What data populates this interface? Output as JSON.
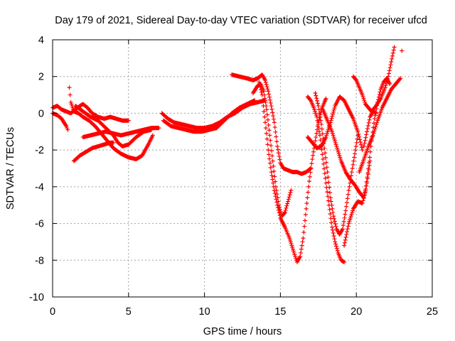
{
  "chart_data": {
    "type": "scatter",
    "title": "Day 179 of 2021, Sidereal Day-to-day VTEC variation (SDTVAR) for receiver ufcd",
    "xlabel": "GPS time / hours",
    "ylabel": "SDTVAR / TECUs",
    "xlim": [
      0,
      25
    ],
    "ylim": [
      -10,
      4
    ],
    "xticks": [
      0,
      5,
      10,
      15,
      20,
      25
    ],
    "yticks": [
      -10,
      -8,
      -6,
      -4,
      -2,
      0,
      2,
      4
    ],
    "grid": true,
    "marker": "+",
    "legend": "none",
    "series": [
      {
        "color": "#ff0000",
        "tracks": [
          [
            [
              0.0,
              0.3
            ],
            [
              0.3,
              0.4
            ],
            [
              0.6,
              0.2
            ],
            [
              0.9,
              0.1
            ],
            [
              1.2,
              0.0
            ],
            [
              1.5,
              0.2
            ],
            [
              1.8,
              0.4
            ],
            [
              2.0,
              0.5
            ],
            [
              2.3,
              0.3
            ],
            [
              2.6,
              0.0
            ],
            [
              3.0,
              -0.2
            ],
            [
              3.4,
              -0.3
            ],
            [
              3.8,
              -0.2
            ],
            [
              4.2,
              -0.3
            ],
            [
              4.6,
              -0.4
            ],
            [
              5.0,
              -0.4
            ]
          ],
          [
            [
              0.0,
              0.0
            ],
            [
              0.3,
              -0.1
            ],
            [
              0.6,
              -0.3
            ],
            [
              0.9,
              -0.7
            ],
            [
              1.0,
              -0.9
            ]
          ],
          [
            [
              1.1,
              1.4
            ],
            [
              1.2,
              0.6
            ],
            [
              1.4,
              0.1
            ],
            [
              1.7,
              0.0
            ],
            [
              2.0,
              -0.2
            ],
            [
              2.4,
              -0.4
            ],
            [
              2.8,
              -0.7
            ],
            [
              3.2,
              -1.1
            ],
            [
              3.6,
              -1.5
            ],
            [
              4.0,
              -1.9
            ],
            [
              4.5,
              -2.2
            ],
            [
              5.0,
              -2.4
            ],
            [
              5.5,
              -2.5
            ],
            [
              5.9,
              -2.3
            ],
            [
              6.3,
              -1.7
            ],
            [
              6.6,
              -1.2
            ]
          ],
          [
            [
              1.4,
              -2.6
            ],
            [
              1.8,
              -2.3
            ],
            [
              2.2,
              -2.1
            ],
            [
              2.6,
              -1.9
            ],
            [
              3.0,
              -1.8
            ],
            [
              3.4,
              -1.7
            ],
            [
              3.8,
              -1.6
            ],
            [
              4.0,
              -1.6
            ]
          ],
          [
            [
              2.0,
              -1.3
            ],
            [
              2.5,
              -1.2
            ],
            [
              3.0,
              -1.1
            ],
            [
              3.5,
              -1.0
            ],
            [
              4.0,
              -1.1
            ],
            [
              4.5,
              -1.2
            ],
            [
              5.0,
              -1.1
            ],
            [
              5.5,
              -1.0
            ],
            [
              6.0,
              -0.9
            ],
            [
              6.5,
              -0.8
            ],
            [
              7.0,
              -0.8
            ]
          ],
          [
            [
              1.5,
              0.4
            ],
            [
              2.0,
              0.1
            ],
            [
              2.5,
              -0.2
            ],
            [
              3.0,
              -0.4
            ],
            [
              3.5,
              -0.8
            ],
            [
              4.0,
              -1.2
            ],
            [
              4.3,
              -1.6
            ],
            [
              4.6,
              -1.8
            ],
            [
              5.0,
              -1.7
            ],
            [
              5.5,
              -1.3
            ],
            [
              6.0,
              -1.0
            ],
            [
              6.5,
              -0.9
            ]
          ],
          [
            [
              7.2,
              0.0
            ],
            [
              7.6,
              -0.3
            ],
            [
              8.0,
              -0.5
            ],
            [
              8.5,
              -0.6
            ],
            [
              9.0,
              -0.7
            ],
            [
              9.5,
              -0.8
            ],
            [
              10.0,
              -0.8
            ],
            [
              10.5,
              -0.7
            ],
            [
              11.0,
              -0.5
            ],
            [
              11.5,
              -0.2
            ],
            [
              12.0,
              0.0
            ],
            [
              12.5,
              0.3
            ],
            [
              13.0,
              0.5
            ],
            [
              13.5,
              0.6
            ],
            [
              14.0,
              0.7
            ]
          ],
          [
            [
              7.3,
              -0.4
            ],
            [
              7.8,
              -0.7
            ],
            [
              8.3,
              -0.8
            ],
            [
              8.8,
              -0.9
            ],
            [
              9.3,
              -1.0
            ],
            [
              9.8,
              -1.0
            ],
            [
              10.3,
              -0.9
            ],
            [
              10.8,
              -0.8
            ],
            [
              11.3,
              -0.4
            ],
            [
              11.8,
              0.0
            ],
            [
              12.3,
              0.3
            ],
            [
              12.8,
              0.5
            ],
            [
              13.3,
              0.7
            ]
          ],
          [
            [
              11.8,
              2.1
            ],
            [
              12.3,
              2.0
            ],
            [
              12.8,
              1.9
            ],
            [
              13.2,
              1.8
            ],
            [
              13.5,
              1.9
            ],
            [
              13.8,
              2.1
            ],
            [
              14.0,
              1.8
            ],
            [
              14.2,
              1.2
            ],
            [
              14.4,
              0.4
            ],
            [
              14.6,
              -0.5
            ],
            [
              14.8,
              -1.8
            ],
            [
              15.0,
              -2.7
            ],
            [
              15.2,
              -3.0
            ],
            [
              15.5,
              -3.1
            ],
            [
              15.8,
              -3.2
            ],
            [
              16.1,
              -3.2
            ],
            [
              16.4,
              -3.3
            ],
            [
              16.7,
              -3.2
            ],
            [
              17.0,
              -3.0
            ]
          ],
          [
            [
              13.2,
              1.1
            ],
            [
              13.5,
              1.5
            ],
            [
              13.7,
              1.6
            ],
            [
              13.9,
              1.2
            ],
            [
              14.1,
              0.2
            ],
            [
              14.3,
              -1.2
            ],
            [
              14.5,
              -2.6
            ],
            [
              14.7,
              -4.0
            ],
            [
              14.9,
              -5.0
            ],
            [
              15.1,
              -5.6
            ],
            [
              15.3,
              -5.4
            ],
            [
              15.5,
              -4.8
            ],
            [
              15.7,
              -4.2
            ]
          ],
          [
            [
              13.6,
              1.7
            ],
            [
              13.8,
              1.0
            ],
            [
              14.0,
              -0.5
            ],
            [
              14.2,
              -2.0
            ],
            [
              14.4,
              -3.2
            ],
            [
              14.6,
              -4.2
            ],
            [
              14.8,
              -5.0
            ],
            [
              15.0,
              -5.7
            ],
            [
              15.3,
              -6.2
            ],
            [
              15.6,
              -6.8
            ],
            [
              15.9,
              -7.6
            ],
            [
              16.1,
              -8.1
            ],
            [
              16.3,
              -7.8
            ],
            [
              16.5,
              -6.8
            ],
            [
              16.7,
              -5.2
            ],
            [
              16.9,
              -3.7
            ],
            [
              17.1,
              -2.5
            ],
            [
              17.3,
              -1.5
            ],
            [
              17.5,
              -0.5
            ],
            [
              17.7,
              0.2
            ],
            [
              17.9,
              0.6
            ],
            [
              18.0,
              0.8
            ]
          ],
          [
            [
              16.8,
              -1.3
            ],
            [
              17.1,
              -1.6
            ],
            [
              17.4,
              -1.9
            ],
            [
              17.7,
              -1.8
            ],
            [
              18.0,
              -1.3
            ],
            [
              18.3,
              -0.5
            ],
            [
              18.6,
              0.4
            ],
            [
              18.9,
              0.9
            ],
            [
              19.2,
              0.7
            ],
            [
              19.5,
              0.2
            ],
            [
              19.8,
              -0.3
            ],
            [
              20.1,
              -1.0
            ],
            [
              20.4,
              -2.0
            ]
          ],
          [
            [
              16.8,
              0.9
            ],
            [
              17.0,
              0.7
            ],
            [
              17.2,
              0.3
            ],
            [
              17.4,
              -0.2
            ],
            [
              17.6,
              -1.2
            ],
            [
              17.8,
              -2.5
            ],
            [
              18.0,
              -3.8
            ],
            [
              18.2,
              -5.0
            ],
            [
              18.4,
              -6.2
            ],
            [
              18.6,
              -7.0
            ],
            [
              18.8,
              -7.6
            ],
            [
              19.0,
              -8.0
            ],
            [
              19.2,
              -8.1
            ]
          ],
          [
            [
              17.3,
              1.1
            ],
            [
              17.5,
              0.4
            ],
            [
              17.7,
              -0.6
            ],
            [
              17.9,
              -1.9
            ],
            [
              18.1,
              -3.2
            ],
            [
              18.3,
              -4.6
            ],
            [
              18.5,
              -5.6
            ],
            [
              18.7,
              -6.3
            ],
            [
              18.9,
              -6.6
            ],
            [
              19.1,
              -6.3
            ],
            [
              19.3,
              -5.3
            ],
            [
              19.5,
              -4.2
            ],
            [
              19.7,
              -3.2
            ],
            [
              19.9,
              -2.2
            ],
            [
              20.1,
              -1.2
            ]
          ],
          [
            [
              17.8,
              0.2
            ],
            [
              18.1,
              -0.4
            ],
            [
              18.4,
              -1.0
            ],
            [
              18.7,
              -1.8
            ],
            [
              19.0,
              -2.6
            ],
            [
              19.3,
              -3.2
            ],
            [
              19.6,
              -3.6
            ],
            [
              19.9,
              -3.9
            ],
            [
              20.2,
              -4.3
            ],
            [
              20.5,
              -4.6
            ],
            [
              20.7,
              -3.8
            ],
            [
              20.9,
              -2.6
            ]
          ],
          [
            [
              19.2,
              -7.2
            ],
            [
              19.5,
              -6.0
            ],
            [
              19.8,
              -5.2
            ],
            [
              20.1,
              -4.8
            ],
            [
              20.4,
              -4.9
            ],
            [
              20.6,
              -4.2
            ],
            [
              20.8,
              -3.0
            ],
            [
              21.0,
              -1.5
            ],
            [
              21.2,
              -0.3
            ],
            [
              21.4,
              0.6
            ],
            [
              21.6,
              1.3
            ],
            [
              21.8,
              1.7
            ],
            [
              22.0,
              1.9
            ],
            [
              22.2,
              1.6
            ]
          ],
          [
            [
              19.8,
              2.0
            ],
            [
              20.0,
              1.8
            ],
            [
              20.2,
              1.4
            ],
            [
              20.4,
              1.0
            ],
            [
              20.6,
              0.5
            ],
            [
              20.8,
              0.3
            ],
            [
              21.0,
              0.1
            ],
            [
              21.3,
              0.4
            ],
            [
              21.6,
              0.8
            ],
            [
              21.9,
              1.4
            ],
            [
              22.1,
              2.0
            ],
            [
              22.3,
              2.8
            ],
            [
              22.5,
              3.6
            ]
          ],
          [
            [
              20.2,
              -3.2
            ],
            [
              20.5,
              -2.5
            ],
            [
              20.8,
              -1.8
            ],
            [
              21.1,
              -1.2
            ],
            [
              21.4,
              -0.4
            ],
            [
              21.7,
              0.3
            ],
            [
              22.0,
              0.8
            ],
            [
              22.3,
              1.3
            ],
            [
              22.6,
              1.6
            ],
            [
              22.9,
              1.9
            ]
          ],
          [
            [
              20.5,
              -1.8
            ],
            [
              20.7,
              -1.0
            ],
            [
              20.9,
              -0.2
            ],
            [
              21.1,
              0.1
            ],
            [
              21.3,
              0.0
            ]
          ],
          [
            [
              23.0,
              3.4
            ]
          ]
        ]
      }
    ]
  }
}
